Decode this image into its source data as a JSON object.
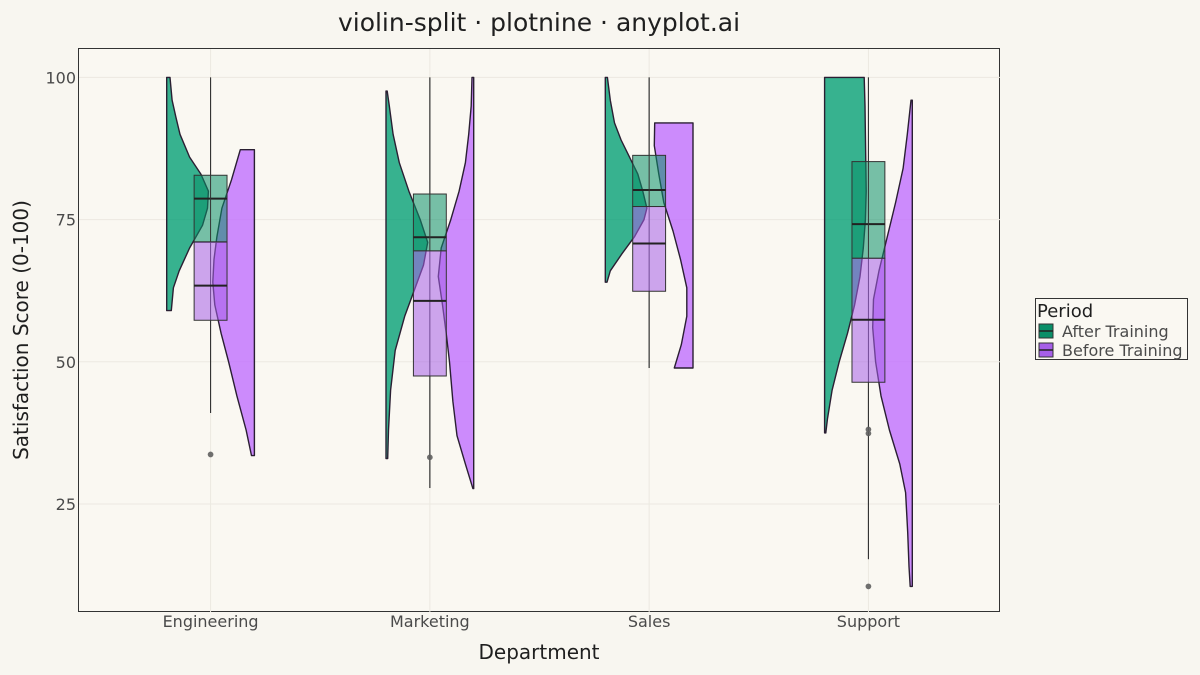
{
  "chart_data": {
    "type": "violin-split",
    "title": "violin-split · plotnine · anyplot.ai",
    "xlabel": "Department",
    "ylabel": "Satisfaction Score (0-100)",
    "ylim": [
      6,
      105
    ],
    "yticks": [
      25,
      50,
      75,
      100
    ],
    "grid": true,
    "legend": {
      "title": "Period",
      "placement": "right",
      "entries": [
        "After Training",
        "Before Training"
      ]
    },
    "categories": [
      "Engineering",
      "Marketing",
      "Sales",
      "Support"
    ],
    "series": [
      {
        "name": "After Training",
        "side": "left",
        "color": "#009E73",
        "box_color": "#0A8F68",
        "groups": [
          {
            "category": "Engineering",
            "violin": [
              [
                59,
                0.11
              ],
              [
                63,
                0.16
              ],
              [
                66,
                0.3
              ],
              [
                70,
                0.55
              ],
              [
                74,
                0.86
              ],
              [
                77,
                0.98
              ],
              [
                80,
                1.0
              ],
              [
                83,
                0.82
              ],
              [
                86,
                0.55
              ],
              [
                90,
                0.32
              ],
              [
                93,
                0.22
              ],
              [
                96,
                0.13
              ],
              [
                100,
                0.08
              ]
            ],
            "box": {
              "q1": 71,
              "median": 78.7,
              "q3": 82.8,
              "whisker_low": 41,
              "whisker_high": 100
            },
            "outliers": [
              33.7
            ]
          },
          {
            "category": "Marketing",
            "violin": [
              [
                33,
                0.04
              ],
              [
                38,
                0.06
              ],
              [
                45,
                0.11
              ],
              [
                52,
                0.22
              ],
              [
                58,
                0.45
              ],
              [
                63,
                0.7
              ],
              [
                67,
                0.9
              ],
              [
                71,
                1.0
              ],
              [
                75,
                0.82
              ],
              [
                80,
                0.55
              ],
              [
                85,
                0.32
              ],
              [
                90,
                0.17
              ],
              [
                95,
                0.08
              ],
              [
                97.6,
                0.03
              ]
            ],
            "box": {
              "q1": 69.5,
              "median": 71.9,
              "q3": 79.5,
              "whisker_low": 27.8,
              "whisker_high": 100
            },
            "outliers": [
              33.2
            ]
          },
          {
            "category": "Sales",
            "violin": [
              [
                64,
                0.04
              ],
              [
                66,
                0.12
              ],
              [
                69,
                0.4
              ],
              [
                72,
                0.7
              ],
              [
                75,
                0.93
              ],
              [
                77,
                1.0
              ],
              [
                80,
                0.9
              ],
              [
                83,
                0.78
              ],
              [
                86,
                0.58
              ],
              [
                89,
                0.38
              ],
              [
                92,
                0.22
              ],
              [
                96,
                0.12
              ],
              [
                100,
                0.05
              ]
            ],
            "box": {
              "q1": 77.3,
              "median": 80.2,
              "q3": 86.3,
              "whisker_low": 48.9,
              "whisker_high": 100
            },
            "outliers": []
          },
          {
            "category": "Support",
            "violin": [
              [
                37.5,
                0.03
              ],
              [
                40,
                0.07
              ],
              [
                45,
                0.18
              ],
              [
                50,
                0.35
              ],
              [
                55,
                0.55
              ],
              [
                60,
                0.72
              ],
              [
                65,
                0.85
              ],
              [
                70,
                0.93
              ],
              [
                75,
                0.98
              ],
              [
                80,
                1.0
              ],
              [
                85,
                0.99
              ],
              [
                90,
                0.98
              ],
              [
                95,
                0.97
              ],
              [
                100,
                0.95
              ]
            ],
            "box": {
              "q1": 68.2,
              "median": 74.2,
              "q3": 85.2,
              "whisker_low": 15.3,
              "whisker_high": 100
            },
            "outliers": [
              10.5,
              37.4,
              38.1
            ]
          }
        ]
      },
      {
        "name": "Before Training",
        "side": "right",
        "color": "#BF6BFF",
        "box_color": "#A65FE8",
        "groups": [
          {
            "category": "Engineering",
            "violin": [
              [
                33.5,
                0.07
              ],
              [
                38,
                0.2
              ],
              [
                44,
                0.42
              ],
              [
                50,
                0.62
              ],
              [
                55,
                0.8
              ],
              [
                60,
                0.95
              ],
              [
                64,
                1.0
              ],
              [
                68,
                0.97
              ],
              [
                72,
                0.9
              ],
              [
                77,
                0.78
              ],
              [
                82,
                0.55
              ],
              [
                87.3,
                0.34
              ]
            ],
            "box": {
              "q1": 57.3,
              "median": 63.4,
              "q3": 71.1,
              "whisker_low": 41,
              "whisker_high": 100
            },
            "outliers": [
              33.7
            ]
          },
          {
            "category": "Marketing",
            "violin": [
              [
                27.7,
                0.02
              ],
              [
                32,
                0.2
              ],
              [
                37,
                0.4
              ],
              [
                43,
                0.5
              ],
              [
                50,
                0.58
              ],
              [
                55,
                0.66
              ],
              [
                60,
                0.75
              ],
              [
                65,
                0.85
              ],
              [
                70,
                0.78
              ],
              [
                75,
                0.55
              ],
              [
                80,
                0.35
              ],
              [
                85,
                0.2
              ],
              [
                90,
                0.12
              ],
              [
                95,
                0.06
              ],
              [
                100,
                0.04
              ]
            ],
            "box": {
              "q1": 47.5,
              "median": 60.7,
              "q3": 69.5,
              "whisker_low": 27.8,
              "whisker_high": 100
            },
            "outliers": [
              33.2
            ]
          },
          {
            "category": "Sales",
            "violin": [
              [
                48.9,
                0.45
              ],
              [
                53,
                0.28
              ],
              [
                58,
                0.15
              ],
              [
                63,
                0.15
              ],
              [
                68,
                0.3
              ],
              [
                73,
                0.48
              ],
              [
                78,
                0.7
              ],
              [
                83,
                0.82
              ],
              [
                88,
                0.93
              ],
              [
                92,
                0.92
              ]
            ],
            "box": {
              "q1": 62.4,
              "median": 70.8,
              "q3": 77.3,
              "whisker_low": 48.9,
              "whisker_high": 100
            },
            "outliers": []
          },
          {
            "category": "Support",
            "violin": [
              [
                10.5,
                0.05
              ],
              [
                14,
                0.08
              ],
              [
                20,
                0.11
              ],
              [
                27,
                0.16
              ],
              [
                32,
                0.3
              ],
              [
                38,
                0.55
              ],
              [
                44,
                0.75
              ],
              [
                50,
                0.88
              ],
              [
                56,
                0.95
              ],
              [
                61,
                0.93
              ],
              [
                66,
                0.8
              ],
              [
                72,
                0.6
              ],
              [
                78,
                0.4
              ],
              [
                84,
                0.22
              ],
              [
                90,
                0.12
              ],
              [
                96,
                0.03
              ]
            ],
            "box": {
              "q1": 46.4,
              "median": 57.4,
              "q3": 68.2,
              "whisker_low": 15.3,
              "whisker_high": 100
            },
            "outliers": [
              10.5,
              37.4,
              38.1
            ]
          }
        ]
      }
    ]
  }
}
